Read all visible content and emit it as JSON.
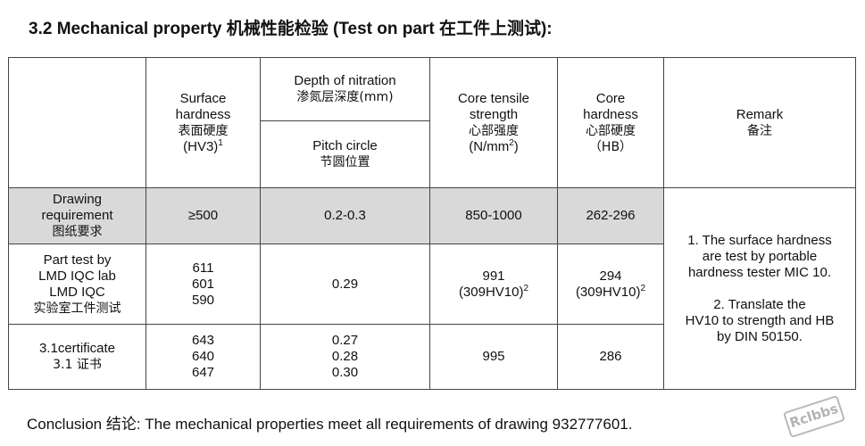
{
  "title": "3.2 Mechanical property 机械性能检验 (Test on part 在工件上测试):",
  "headers": {
    "surface": {
      "en": "Surface\nhardness",
      "cn": "表面硬度",
      "unit": "(HV3)",
      "sup": "1"
    },
    "depth": {
      "en": "Depth of nitration",
      "cn": "渗氮层深度(mm)"
    },
    "pitch": {
      "en": "Pitch circle",
      "cn": "节圆位置"
    },
    "core_tensile": {
      "en": "Core tensile\nstrength",
      "cn": "心部强度",
      "unit": "(N/mm",
      "sup": "2",
      "unit_end": ")"
    },
    "core_hardness": {
      "en": "Core\nhardness",
      "cn": "心部硬度",
      "unit": "（HB）"
    },
    "remark": {
      "en": "Remark",
      "cn": "备注"
    }
  },
  "rows": {
    "drawing": {
      "label_en": "Drawing\nrequirement",
      "label_cn": "图纸要求",
      "surface": "≥500",
      "pitch": "0.2-0.3",
      "core_tensile": "850-1000",
      "core_hardness": "262-296"
    },
    "part_test": {
      "label_en": "Part test by\nLMD IQC lab\nLMD IQC",
      "label_cn": "实验室工件测试",
      "surface": "611\n601\n590",
      "pitch": "0.29",
      "core_tensile": "991",
      "core_tensile_sub": "(309HV10)",
      "core_tensile_sup": "2",
      "core_hardness": "294",
      "core_hardness_sub": "(309HV10)",
      "core_hardness_sup": "2"
    },
    "certificate": {
      "label_en": "3.1certificate",
      "label_cn": "3.1 证书",
      "surface": "643\n640\n647",
      "pitch": "0.27\n0.28\n0.30",
      "core_tensile": "995",
      "core_hardness": "286"
    }
  },
  "remark_text": {
    "note1": "1. The surface hardness\nare test by portable\nhardness tester MIC 10.",
    "note2": "2. Translate the\nHV10 to strength and HB\nby DIN 50150."
  },
  "conclusion": "Conclusion 结论: The mechanical properties meet all requirements of drawing 932777601.",
  "stamp": "Rclbbs"
}
